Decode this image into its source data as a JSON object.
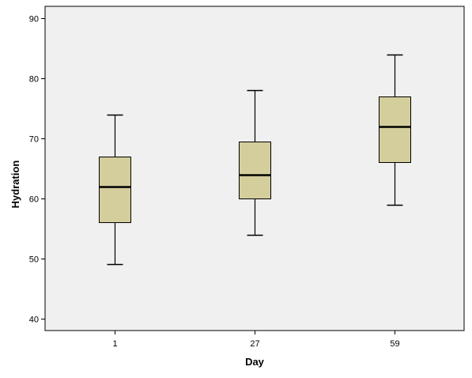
{
  "chart_data": {
    "type": "box",
    "title": "",
    "xlabel": "Day",
    "ylabel": "Hydration",
    "categories": [
      "1",
      "27",
      "59"
    ],
    "boxes": [
      {
        "category": "1",
        "whisker_low": 49,
        "q1": 56,
        "median": 62,
        "q3": 67,
        "whisker_high": 74
      },
      {
        "category": "27",
        "whisker_low": 54,
        "q1": 60,
        "median": 64,
        "q3": 69.5,
        "whisker_high": 78
      },
      {
        "category": "59",
        "whisker_low": 59,
        "q1": 66,
        "median": 72,
        "q3": 77,
        "whisker_high": 84
      }
    ],
    "ylim": [
      38,
      92
    ],
    "yticks": [
      40,
      50,
      60,
      70,
      80,
      90
    ],
    "grid": false,
    "legend": "none",
    "colors": {
      "plot_background": "#F0F0F0",
      "box_fill": "#D3CE9C",
      "line": "#000000"
    }
  }
}
